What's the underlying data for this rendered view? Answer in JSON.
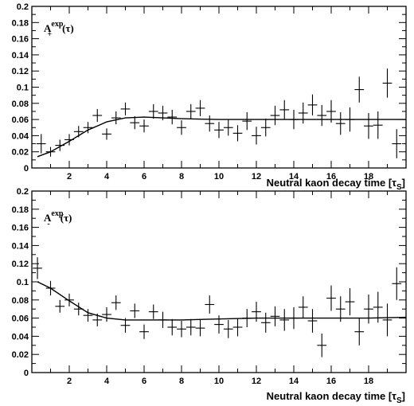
{
  "chart_data": [
    {
      "type": "scatter",
      "title": "",
      "label": {
        "main": "A",
        "sup": "exp",
        "sub": "+",
        "arg": "(τ)"
      },
      "xlabel": "Neutral kaon decay time [τS]",
      "xlabel_main": "Neutral kaon decay time [τ",
      "xlabel_sub": "S",
      "xlabel_end": "]",
      "ylabel": "",
      "xlim": [
        0,
        20
      ],
      "ylim": [
        0,
        0.2
      ],
      "xticks": [
        2,
        4,
        6,
        8,
        10,
        12,
        14,
        16,
        18
      ],
      "yticks": [
        0,
        0.02,
        0.04,
        0.06,
        0.08,
        0.1,
        0.12,
        0.14,
        0.16,
        0.18,
        0.2
      ],
      "ytick_labels": [
        "0",
        "0.02",
        "0.04",
        "0.06",
        "0.08",
        "0.1",
        "0.12",
        "0.14",
        "0.16",
        "0.18",
        "0.2"
      ],
      "grid": false,
      "xerr": 0.25,
      "points": [
        {
          "x": 0.5,
          "y": 0.03,
          "err": 0.012
        },
        {
          "x": 1.0,
          "y": 0.02,
          "err": 0.006
        },
        {
          "x": 1.5,
          "y": 0.028,
          "err": 0.007
        },
        {
          "x": 2.0,
          "y": 0.035,
          "err": 0.007
        },
        {
          "x": 2.5,
          "y": 0.045,
          "err": 0.007
        },
        {
          "x": 3.0,
          "y": 0.05,
          "err": 0.007
        },
        {
          "x": 3.5,
          "y": 0.065,
          "err": 0.008
        },
        {
          "x": 4.0,
          "y": 0.042,
          "err": 0.007
        },
        {
          "x": 4.5,
          "y": 0.062,
          "err": 0.008
        },
        {
          "x": 5.0,
          "y": 0.073,
          "err": 0.008
        },
        {
          "x": 5.5,
          "y": 0.056,
          "err": 0.008
        },
        {
          "x": 6.0,
          "y": 0.052,
          "err": 0.008
        },
        {
          "x": 6.5,
          "y": 0.07,
          "err": 0.009
        },
        {
          "x": 7.0,
          "y": 0.068,
          "err": 0.009
        },
        {
          "x": 7.5,
          "y": 0.063,
          "err": 0.009
        },
        {
          "x": 8.0,
          "y": 0.05,
          "err": 0.009
        },
        {
          "x": 8.5,
          "y": 0.07,
          "err": 0.009
        },
        {
          "x": 9.0,
          "y": 0.074,
          "err": 0.01
        },
        {
          "x": 9.5,
          "y": 0.055,
          "err": 0.01
        },
        {
          "x": 10.0,
          "y": 0.047,
          "err": 0.01
        },
        {
          "x": 10.5,
          "y": 0.05,
          "err": 0.01
        },
        {
          "x": 11.0,
          "y": 0.043,
          "err": 0.01
        },
        {
          "x": 11.5,
          "y": 0.058,
          "err": 0.011
        },
        {
          "x": 12.0,
          "y": 0.04,
          "err": 0.011
        },
        {
          "x": 12.5,
          "y": 0.05,
          "err": 0.011
        },
        {
          "x": 13.0,
          "y": 0.065,
          "err": 0.012
        },
        {
          "x": 13.5,
          "y": 0.072,
          "err": 0.012
        },
        {
          "x": 14.0,
          "y": 0.06,
          "err": 0.012
        },
        {
          "x": 14.5,
          "y": 0.068,
          "err": 0.013
        },
        {
          "x": 15.0,
          "y": 0.078,
          "err": 0.013
        },
        {
          "x": 15.5,
          "y": 0.065,
          "err": 0.013
        },
        {
          "x": 16.0,
          "y": 0.07,
          "err": 0.014
        },
        {
          "x": 16.5,
          "y": 0.055,
          "err": 0.014
        },
        {
          "x": 17.0,
          "y": 0.06,
          "err": 0.015
        },
        {
          "x": 17.5,
          "y": 0.097,
          "err": 0.016
        },
        {
          "x": 18.0,
          "y": 0.052,
          "err": 0.016
        },
        {
          "x": 18.5,
          "y": 0.053,
          "err": 0.017
        },
        {
          "x": 19.0,
          "y": 0.105,
          "err": 0.018
        },
        {
          "x": 19.5,
          "y": 0.03,
          "err": 0.018
        }
      ],
      "fit": [
        [
          0.3,
          0.014
        ],
        [
          1,
          0.02
        ],
        [
          2,
          0.033
        ],
        [
          3,
          0.047
        ],
        [
          4,
          0.057
        ],
        [
          5,
          0.062
        ],
        [
          6,
          0.063
        ],
        [
          7,
          0.062
        ],
        [
          8,
          0.061
        ],
        [
          10,
          0.06
        ],
        [
          12,
          0.06
        ],
        [
          14,
          0.06
        ],
        [
          16,
          0.06
        ],
        [
          18,
          0.06
        ],
        [
          20,
          0.06
        ]
      ]
    },
    {
      "type": "scatter",
      "title": "",
      "label": {
        "main": "A",
        "sup": "exp",
        "sub": "-",
        "arg": "(τ)"
      },
      "xlabel": "Neutral kaon decay time [τS]",
      "xlabel_main": "Neutral kaon decay time [τ",
      "xlabel_sub": "S",
      "xlabel_end": "]",
      "ylabel": "",
      "xlim": [
        0,
        20
      ],
      "ylim": [
        0,
        0.2
      ],
      "xticks": [
        2,
        4,
        6,
        8,
        10,
        12,
        14,
        16,
        18
      ],
      "yticks": [
        0,
        0.02,
        0.04,
        0.06,
        0.08,
        0.1,
        0.12,
        0.14,
        0.16,
        0.18,
        0.2
      ],
      "ytick_labels": [
        "0",
        "0.02",
        "0.04",
        "0.06",
        "0.08",
        "0.1",
        "0.12",
        "0.14",
        "0.16",
        "0.18",
        "0.2"
      ],
      "grid": false,
      "xerr": 0.25,
      "points": [
        {
          "x": 0.3,
          "y": 0.115,
          "err": 0.012
        },
        {
          "x": 1.0,
          "y": 0.093,
          "err": 0.008
        },
        {
          "x": 1.5,
          "y": 0.073,
          "err": 0.007
        },
        {
          "x": 2.0,
          "y": 0.08,
          "err": 0.007
        },
        {
          "x": 2.5,
          "y": 0.07,
          "err": 0.007
        },
        {
          "x": 3.0,
          "y": 0.063,
          "err": 0.007
        },
        {
          "x": 3.5,
          "y": 0.058,
          "err": 0.007
        },
        {
          "x": 4.0,
          "y": 0.064,
          "err": 0.008
        },
        {
          "x": 4.5,
          "y": 0.077,
          "err": 0.008
        },
        {
          "x": 5.0,
          "y": 0.052,
          "err": 0.008
        },
        {
          "x": 5.5,
          "y": 0.068,
          "err": 0.008
        },
        {
          "x": 6.0,
          "y": 0.045,
          "err": 0.008
        },
        {
          "x": 6.5,
          "y": 0.067,
          "err": 0.008
        },
        {
          "x": 7.0,
          "y": 0.058,
          "err": 0.009
        },
        {
          "x": 7.5,
          "y": 0.05,
          "err": 0.009
        },
        {
          "x": 8.0,
          "y": 0.048,
          "err": 0.009
        },
        {
          "x": 8.5,
          "y": 0.05,
          "err": 0.009
        },
        {
          "x": 9.0,
          "y": 0.049,
          "err": 0.009
        },
        {
          "x": 9.5,
          "y": 0.075,
          "err": 0.01
        },
        {
          "x": 10.0,
          "y": 0.053,
          "err": 0.01
        },
        {
          "x": 10.5,
          "y": 0.048,
          "err": 0.01
        },
        {
          "x": 11.0,
          "y": 0.05,
          "err": 0.01
        },
        {
          "x": 11.5,
          "y": 0.06,
          "err": 0.01
        },
        {
          "x": 12.0,
          "y": 0.067,
          "err": 0.011
        },
        {
          "x": 12.5,
          "y": 0.055,
          "err": 0.011
        },
        {
          "x": 13.0,
          "y": 0.062,
          "err": 0.011
        },
        {
          "x": 13.5,
          "y": 0.058,
          "err": 0.012
        },
        {
          "x": 14.0,
          "y": 0.06,
          "err": 0.012
        },
        {
          "x": 14.5,
          "y": 0.072,
          "err": 0.012
        },
        {
          "x": 15.0,
          "y": 0.057,
          "err": 0.013
        },
        {
          "x": 15.5,
          "y": 0.03,
          "err": 0.013
        },
        {
          "x": 16.0,
          "y": 0.082,
          "err": 0.014
        },
        {
          "x": 16.5,
          "y": 0.07,
          "err": 0.014
        },
        {
          "x": 17.0,
          "y": 0.078,
          "err": 0.015
        },
        {
          "x": 17.5,
          "y": 0.045,
          "err": 0.015
        },
        {
          "x": 18.0,
          "y": 0.07,
          "err": 0.016
        },
        {
          "x": 18.5,
          "y": 0.072,
          "err": 0.017
        },
        {
          "x": 19.0,
          "y": 0.058,
          "err": 0.018
        },
        {
          "x": 19.5,
          "y": 0.098,
          "err": 0.018
        }
      ],
      "fit": [
        [
          0.3,
          0.1
        ],
        [
          1,
          0.093
        ],
        [
          2,
          0.079
        ],
        [
          3,
          0.066
        ],
        [
          4,
          0.06
        ],
        [
          5,
          0.058
        ],
        [
          6,
          0.058
        ],
        [
          8,
          0.058
        ],
        [
          10,
          0.059
        ],
        [
          12,
          0.06
        ],
        [
          14,
          0.06
        ],
        [
          16,
          0.06
        ],
        [
          18,
          0.06
        ],
        [
          20,
          0.061
        ]
      ]
    }
  ]
}
